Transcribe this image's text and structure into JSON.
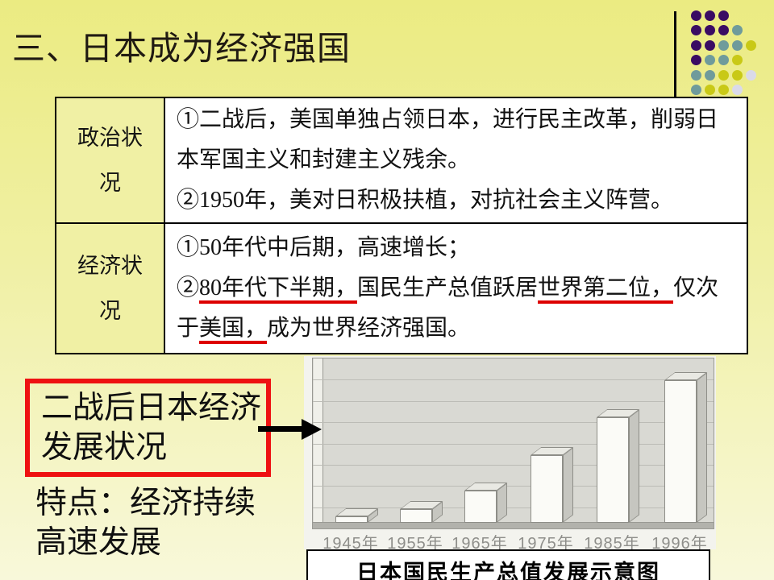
{
  "slide_title": "三、日本成为经济强国",
  "decor": {
    "colors": {
      "p": "#3a0c63",
      "t": "#6f9b9b",
      "y": "#c9c916",
      "l": "#dadae9"
    },
    "pattern": [
      [
        "p",
        "p",
        "p",
        null,
        null
      ],
      [
        "p",
        "p",
        "p",
        "t",
        null
      ],
      [
        "p",
        "p",
        "t",
        "t",
        "y"
      ],
      [
        "p",
        "t",
        "t",
        "y",
        null
      ],
      [
        "t",
        "t",
        "y",
        "y",
        "l"
      ],
      [
        "t",
        "y",
        "y",
        "l",
        null
      ]
    ]
  },
  "table": {
    "rows": [
      {
        "header": "政治状况",
        "paragraphs": [
          {
            "segments": [
              {
                "t": "①二战后，美国单独占领日本，进行民主改革，削弱日本军国主义和封建主义残余。"
              }
            ]
          },
          {
            "segments": [
              {
                "t": "②1950年，美对日积极扶植，对抗社会主义阵营。"
              }
            ]
          }
        ]
      },
      {
        "header": "经济状况",
        "paragraphs": [
          {
            "segments": [
              {
                "t": "①50年代中后期，高速增长；"
              }
            ]
          },
          {
            "segments": [
              {
                "t": "②"
              },
              {
                "t": "80年代下半期，",
                "u": true
              },
              {
                "t": "国民生产总值跃居"
              },
              {
                "t": "世界第二位，",
                "u": true
              },
              {
                "t": "仅次于"
              },
              {
                "t": "美国，",
                "u": true
              },
              {
                "t": "成为世界经济强国。"
              }
            ]
          }
        ]
      }
    ]
  },
  "callout": {
    "label": "二战后日本经济发展状况"
  },
  "features_text": "特点：经济持续高速发展",
  "chart_data": {
    "type": "bar",
    "title": "日本国民生产总值发展示意图",
    "categories": [
      "1945年",
      "1955年",
      "1965年",
      "1975年",
      "1985年",
      "1996年"
    ],
    "values": [
      4,
      8,
      19,
      40,
      62,
      84
    ],
    "values_unit": "percent_of_plot_height",
    "xlabel": "",
    "ylabel": "",
    "y_axis_labels": false,
    "gridlines": 8,
    "style": "3d-grayscale",
    "legend": "none"
  },
  "colors": {
    "accent_red": "#ee1111",
    "underline_red": "#dd0000",
    "background_top": "#ebeb82",
    "background_bottom": "#f8f8da"
  }
}
